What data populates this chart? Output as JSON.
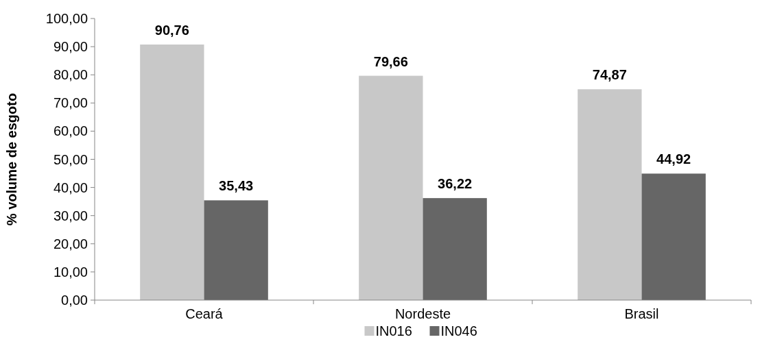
{
  "chart_data": {
    "type": "bar",
    "ylabel": "% volume de esgoto",
    "categories": [
      "Ceará",
      "Nordeste",
      "Brasil"
    ],
    "series": [
      {
        "name": "IN016",
        "color": "#c8c8c8",
        "values": [
          90.76,
          79.66,
          74.87
        ],
        "value_labels": [
          "90,76",
          "79,66",
          "74,87"
        ]
      },
      {
        "name": "IN046",
        "color": "#666666",
        "values": [
          35.43,
          36.22,
          44.92
        ],
        "value_labels": [
          "35,43",
          "36,22",
          "44,92"
        ]
      }
    ],
    "ylim": [
      0,
      100
    ],
    "yticks": [
      {
        "value": 0,
        "label": "0,00"
      },
      {
        "value": 10,
        "label": "10,00"
      },
      {
        "value": 20,
        "label": "20,00"
      },
      {
        "value": 30,
        "label": "30,00"
      },
      {
        "value": 40,
        "label": "40,00"
      },
      {
        "value": 50,
        "label": "50,00"
      },
      {
        "value": 60,
        "label": "60,00"
      },
      {
        "value": 70,
        "label": "70,00"
      },
      {
        "value": 80,
        "label": "80,00"
      },
      {
        "value": 90,
        "label": "90,00"
      },
      {
        "value": 100,
        "label": "100,00"
      }
    ],
    "grid": false,
    "legend": "bottom"
  }
}
